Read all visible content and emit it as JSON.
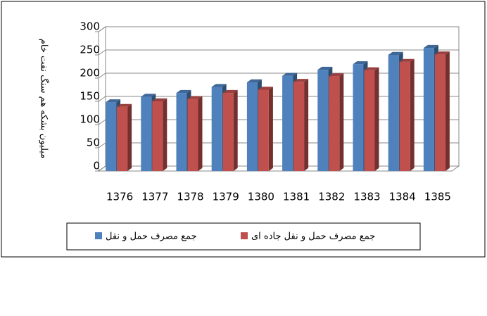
{
  "chart_data": {
    "type": "bar3d",
    "y_label": "میلیون بشکه هم سنگ نفت خام",
    "categories": [
      "1376",
      "1377",
      "1378",
      "1379",
      "1380",
      "1381",
      "1382",
      "1383",
      "1384",
      "1385"
    ],
    "series": [
      {
        "name": "جمع مصرف حمل و نقل",
        "color": "#4f81bd",
        "values": [
          148,
          160,
          168,
          181,
          191,
          205,
          218,
          230,
          250,
          265
        ]
      },
      {
        "name": "جمع مصرف حمل و نقل جاده ای",
        "color": "#c0504d",
        "values": [
          138,
          150,
          155,
          168,
          175,
          192,
          204,
          217,
          235,
          251
        ]
      }
    ],
    "ylim": [
      0,
      300
    ],
    "yticks": [
      0,
      50,
      100,
      150,
      200,
      250,
      300
    ],
    "grid": true
  }
}
